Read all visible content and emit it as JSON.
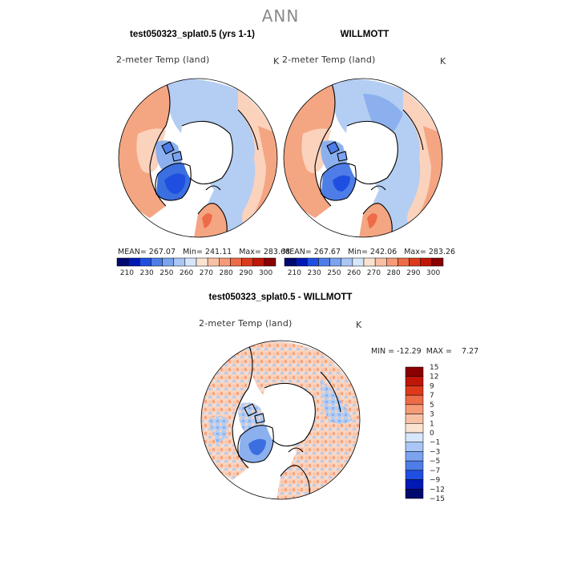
{
  "figure": {
    "title": "ANN"
  },
  "panels": [
    {
      "title": "test050323_splat0.5 (yrs 1-1)",
      "variable": "2-meter Temp (land)",
      "units": "K",
      "stats": "MEAN= 267.07   Min= 241.11   Max= 283.68"
    },
    {
      "title": "WILLMOTT",
      "variable": "2-meter Temp (land)",
      "units": "K",
      "stats": "MEAN= 267.67   Min= 242.06   Max= 283.26"
    },
    {
      "title": "test050323_splat0.5 - WILLMOTT",
      "variable": "2-meter Temp (land)",
      "units": "K",
      "stats": "MIN = -12.29  MAX =    7.27"
    }
  ],
  "colorbar_abs": {
    "colors": [
      "#000a6e",
      "#0018b4",
      "#1f4fe0",
      "#4f7de8",
      "#7ba3f0",
      "#a9c6f5",
      "#d6e6fb",
      "#fbe3d2",
      "#f8c0a4",
      "#f59b78",
      "#ee6b48",
      "#dd3a1c",
      "#bf1608",
      "#8a0000"
    ],
    "tick_labels": [
      "210",
      "230",
      "250",
      "260",
      "270",
      "280",
      "290",
      "300"
    ]
  },
  "colorbar_diff": {
    "colors": [
      "#000a6e",
      "#0018b4",
      "#1f4fe0",
      "#4f7de8",
      "#7ba3f0",
      "#a9c6f5",
      "#d6e6fb",
      "#fbe3d2",
      "#f8c0a4",
      "#f59b78",
      "#ee6b48",
      "#dd3a1c",
      "#bf1608",
      "#8a0000"
    ],
    "tick_labels": [
      "15",
      "12",
      "9",
      "7",
      "5",
      "3",
      "1",
      "0",
      "−1",
      "−3",
      "−5",
      "−7",
      "−9",
      "−12",
      "−15"
    ]
  },
  "map": {
    "projection": "north polar stereographic",
    "map_colors": {
      "warm": "#f4a582",
      "warm_light": "#fbd2bc",
      "cool": "#b4cdf2",
      "cool_mid": "#8cb0ee",
      "cold": "#3b6fe0",
      "ocean": "#ffffff",
      "coast": "#000000"
    }
  }
}
